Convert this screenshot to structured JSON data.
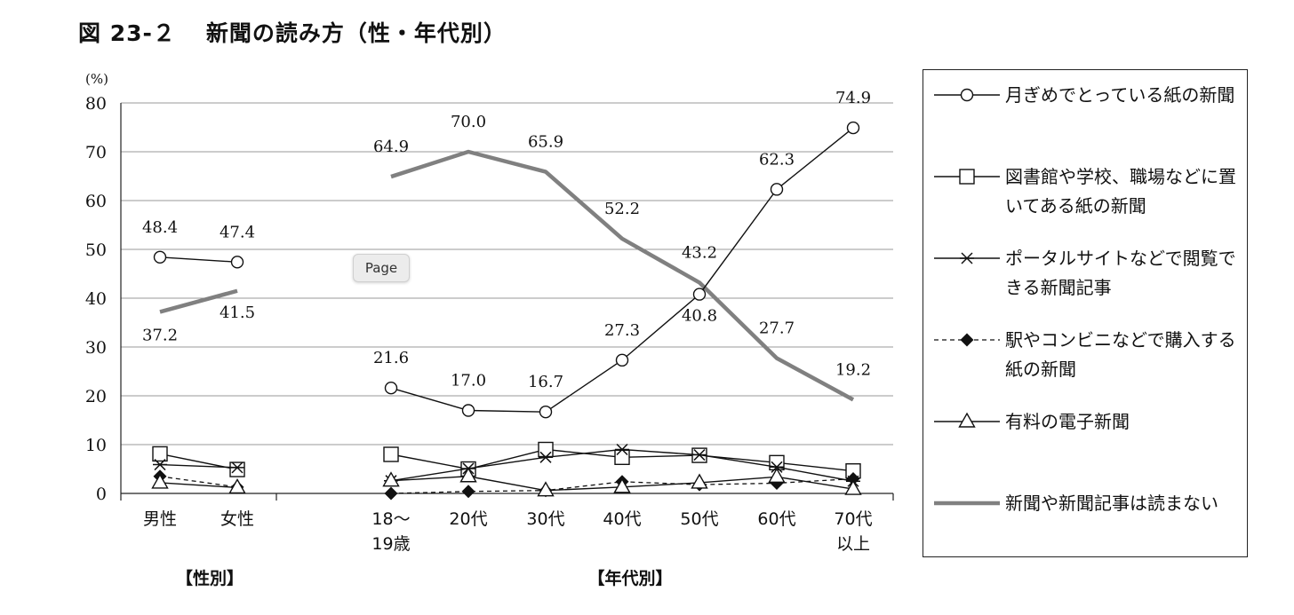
{
  "title": {
    "number": "図 23-２",
    "text": "新聞の読み方（性・年代別）"
  },
  "page_button": "Page",
  "chart_data": {
    "type": "line",
    "unit": "(%)",
    "ylim": [
      0,
      80
    ],
    "yticks": [
      0,
      10,
      20,
      30,
      40,
      50,
      60,
      70,
      80
    ],
    "grid": true,
    "legend_position": "right",
    "groups": [
      {
        "label": "【性別】",
        "categories": [
          "男性",
          "女性"
        ]
      },
      {
        "label": "【年代別】",
        "categories": [
          "18～\n19歳",
          "20代",
          "30代",
          "40代",
          "50代",
          "60代",
          "70代\n以上"
        ]
      }
    ],
    "series": [
      {
        "name": "月ぎめでとっている紙の新聞",
        "marker": "circle",
        "color": "#111111",
        "stroke": "thin",
        "values": [
          [
            48.4,
            47.4
          ],
          [
            21.6,
            17.0,
            16.7,
            27.3,
            40.8,
            62.3,
            74.9
          ]
        ],
        "labels": [
          [
            "48.4",
            "47.4"
          ],
          [
            "21.6",
            "17.0",
            "16.7",
            "27.3",
            "40.8",
            "62.3",
            "74.9"
          ]
        ]
      },
      {
        "name": "図書館や学校、職場などに置いてある紙の新聞",
        "marker": "square",
        "color": "#111111",
        "stroke": "thin",
        "values": [
          [
            8.1,
            4.9
          ],
          [
            8.0,
            5.0,
            9.0,
            7.4,
            7.8,
            6.3,
            4.6
          ]
        ]
      },
      {
        "name": "ポータルサイトなどで閲覧できる新聞記事",
        "marker": "asterisk",
        "color": "#111111",
        "stroke": "thin",
        "values": [
          [
            5.9,
            5.3
          ],
          [
            2.6,
            5.1,
            7.4,
            9.0,
            7.9,
            5.4,
            2.5
          ]
        ]
      },
      {
        "name": "駅やコンビニなどで購入する紙の新聞",
        "marker": "diamond",
        "color": "#111111",
        "stroke": "dashed",
        "values": [
          [
            3.5,
            1.3
          ],
          [
            0.0,
            0.4,
            0.6,
            2.4,
            1.8,
            2.1,
            3.0
          ]
        ]
      },
      {
        "name": "有料の電子新聞",
        "marker": "triangle",
        "color": "#111111",
        "stroke": "thin",
        "values": [
          [
            2.2,
            1.2
          ],
          [
            2.6,
            3.5,
            0.6,
            1.3,
            2.2,
            3.4,
            0.9
          ]
        ]
      },
      {
        "name": "新聞や新聞記事は読まない",
        "marker": "none",
        "color": "#808080",
        "stroke": "thick",
        "values": [
          [
            37.2,
            41.5
          ],
          [
            64.9,
            70.0,
            65.9,
            52.2,
            43.2,
            27.7,
            19.2
          ]
        ],
        "labels": [
          [
            "37.2",
            "41.5"
          ],
          [
            "64.9",
            "70.0",
            "65.9",
            "52.2",
            "43.2",
            "27.7",
            "19.2"
          ]
        ]
      }
    ]
  }
}
